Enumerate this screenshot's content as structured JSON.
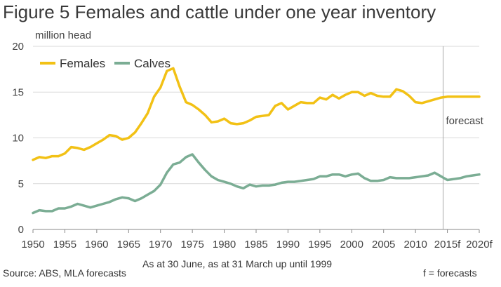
{
  "title": "Figure 5 Females and cattle under one year inventory",
  "chart_data": {
    "type": "line",
    "ylabel": "million head",
    "ylim": [
      0,
      20
    ],
    "yticks": [
      "0",
      "5",
      "10",
      "15",
      "20"
    ],
    "xlim": [
      1950,
      2020
    ],
    "xticks": [
      {
        "value": 1950,
        "label": "1950"
      },
      {
        "value": 1955,
        "label": "1955"
      },
      {
        "value": 1960,
        "label": "1960"
      },
      {
        "value": 1965,
        "label": "1965"
      },
      {
        "value": 1970,
        "label": "1970"
      },
      {
        "value": 1975,
        "label": "1975"
      },
      {
        "value": 1980,
        "label": "1980"
      },
      {
        "value": 1985,
        "label": "1985"
      },
      {
        "value": 1990,
        "label": "1990"
      },
      {
        "value": 1995,
        "label": "1995"
      },
      {
        "value": 2000,
        "label": "2000"
      },
      {
        "value": 2005,
        "label": "2005"
      },
      {
        "value": 2010,
        "label": "2010"
      },
      {
        "value": 2015,
        "label": "2015f"
      },
      {
        "value": 2020,
        "label": "2020f"
      }
    ],
    "xlabel": "As at 30 June, as at 31 March up until 1999",
    "grid": true,
    "legend": "top-left",
    "forecast_start": 2014,
    "forecast_label": "forecast",
    "x": [
      1950,
      1951,
      1952,
      1953,
      1954,
      1955,
      1956,
      1957,
      1958,
      1959,
      1960,
      1961,
      1962,
      1963,
      1964,
      1965,
      1966,
      1967,
      1968,
      1969,
      1970,
      1971,
      1972,
      1973,
      1974,
      1975,
      1976,
      1977,
      1978,
      1979,
      1980,
      1981,
      1982,
      1983,
      1984,
      1985,
      1986,
      1987,
      1988,
      1989,
      1990,
      1991,
      1992,
      1993,
      1994,
      1995,
      1996,
      1997,
      1998,
      1999,
      2000,
      2001,
      2002,
      2003,
      2004,
      2005,
      2006,
      2007,
      2008,
      2009,
      2010,
      2011,
      2012,
      2013,
      2014,
      2015,
      2016,
      2017,
      2018,
      2019,
      2020
    ],
    "series": [
      {
        "name": "Females",
        "color": "#f2c115",
        "values": [
          7.6,
          7.9,
          7.8,
          8.0,
          8.0,
          8.3,
          9.0,
          8.9,
          8.7,
          9.0,
          9.4,
          9.8,
          10.3,
          10.2,
          9.8,
          10.0,
          10.6,
          11.6,
          12.7,
          14.5,
          15.5,
          17.3,
          17.6,
          15.6,
          13.9,
          13.6,
          13.1,
          12.5,
          11.7,
          11.8,
          12.1,
          11.6,
          11.5,
          11.6,
          11.9,
          12.3,
          12.4,
          12.5,
          13.5,
          13.8,
          13.1,
          13.5,
          13.9,
          13.8,
          13.8,
          14.4,
          14.2,
          14.7,
          14.3,
          14.7,
          15.0,
          15.0,
          14.6,
          14.9,
          14.6,
          14.5,
          14.5,
          15.3,
          15.1,
          14.6,
          13.9,
          13.8,
          14.0,
          14.2,
          14.4,
          14.5,
          14.5,
          14.5,
          14.5,
          14.5,
          14.5
        ]
      },
      {
        "name": "Calves",
        "color": "#7bad94",
        "values": [
          1.8,
          2.1,
          2.0,
          2.0,
          2.3,
          2.3,
          2.5,
          2.8,
          2.6,
          2.4,
          2.6,
          2.8,
          3.0,
          3.3,
          3.5,
          3.4,
          3.1,
          3.4,
          3.8,
          4.2,
          4.9,
          6.2,
          7.1,
          7.3,
          7.9,
          8.2,
          7.3,
          6.5,
          5.8,
          5.4,
          5.2,
          5.0,
          4.7,
          4.5,
          4.9,
          4.7,
          4.8,
          4.8,
          4.9,
          5.1,
          5.2,
          5.2,
          5.3,
          5.4,
          5.5,
          5.8,
          5.8,
          6.0,
          6.0,
          5.8,
          6.0,
          6.1,
          5.6,
          5.3,
          5.3,
          5.4,
          5.7,
          5.6,
          5.6,
          5.6,
          5.7,
          5.8,
          5.9,
          6.2,
          5.8,
          5.4,
          5.5,
          5.6,
          5.8,
          5.9,
          6.0
        ]
      }
    ]
  },
  "source": "Source: ABS, MLA forecasts",
  "footnote": "f = forecasts"
}
